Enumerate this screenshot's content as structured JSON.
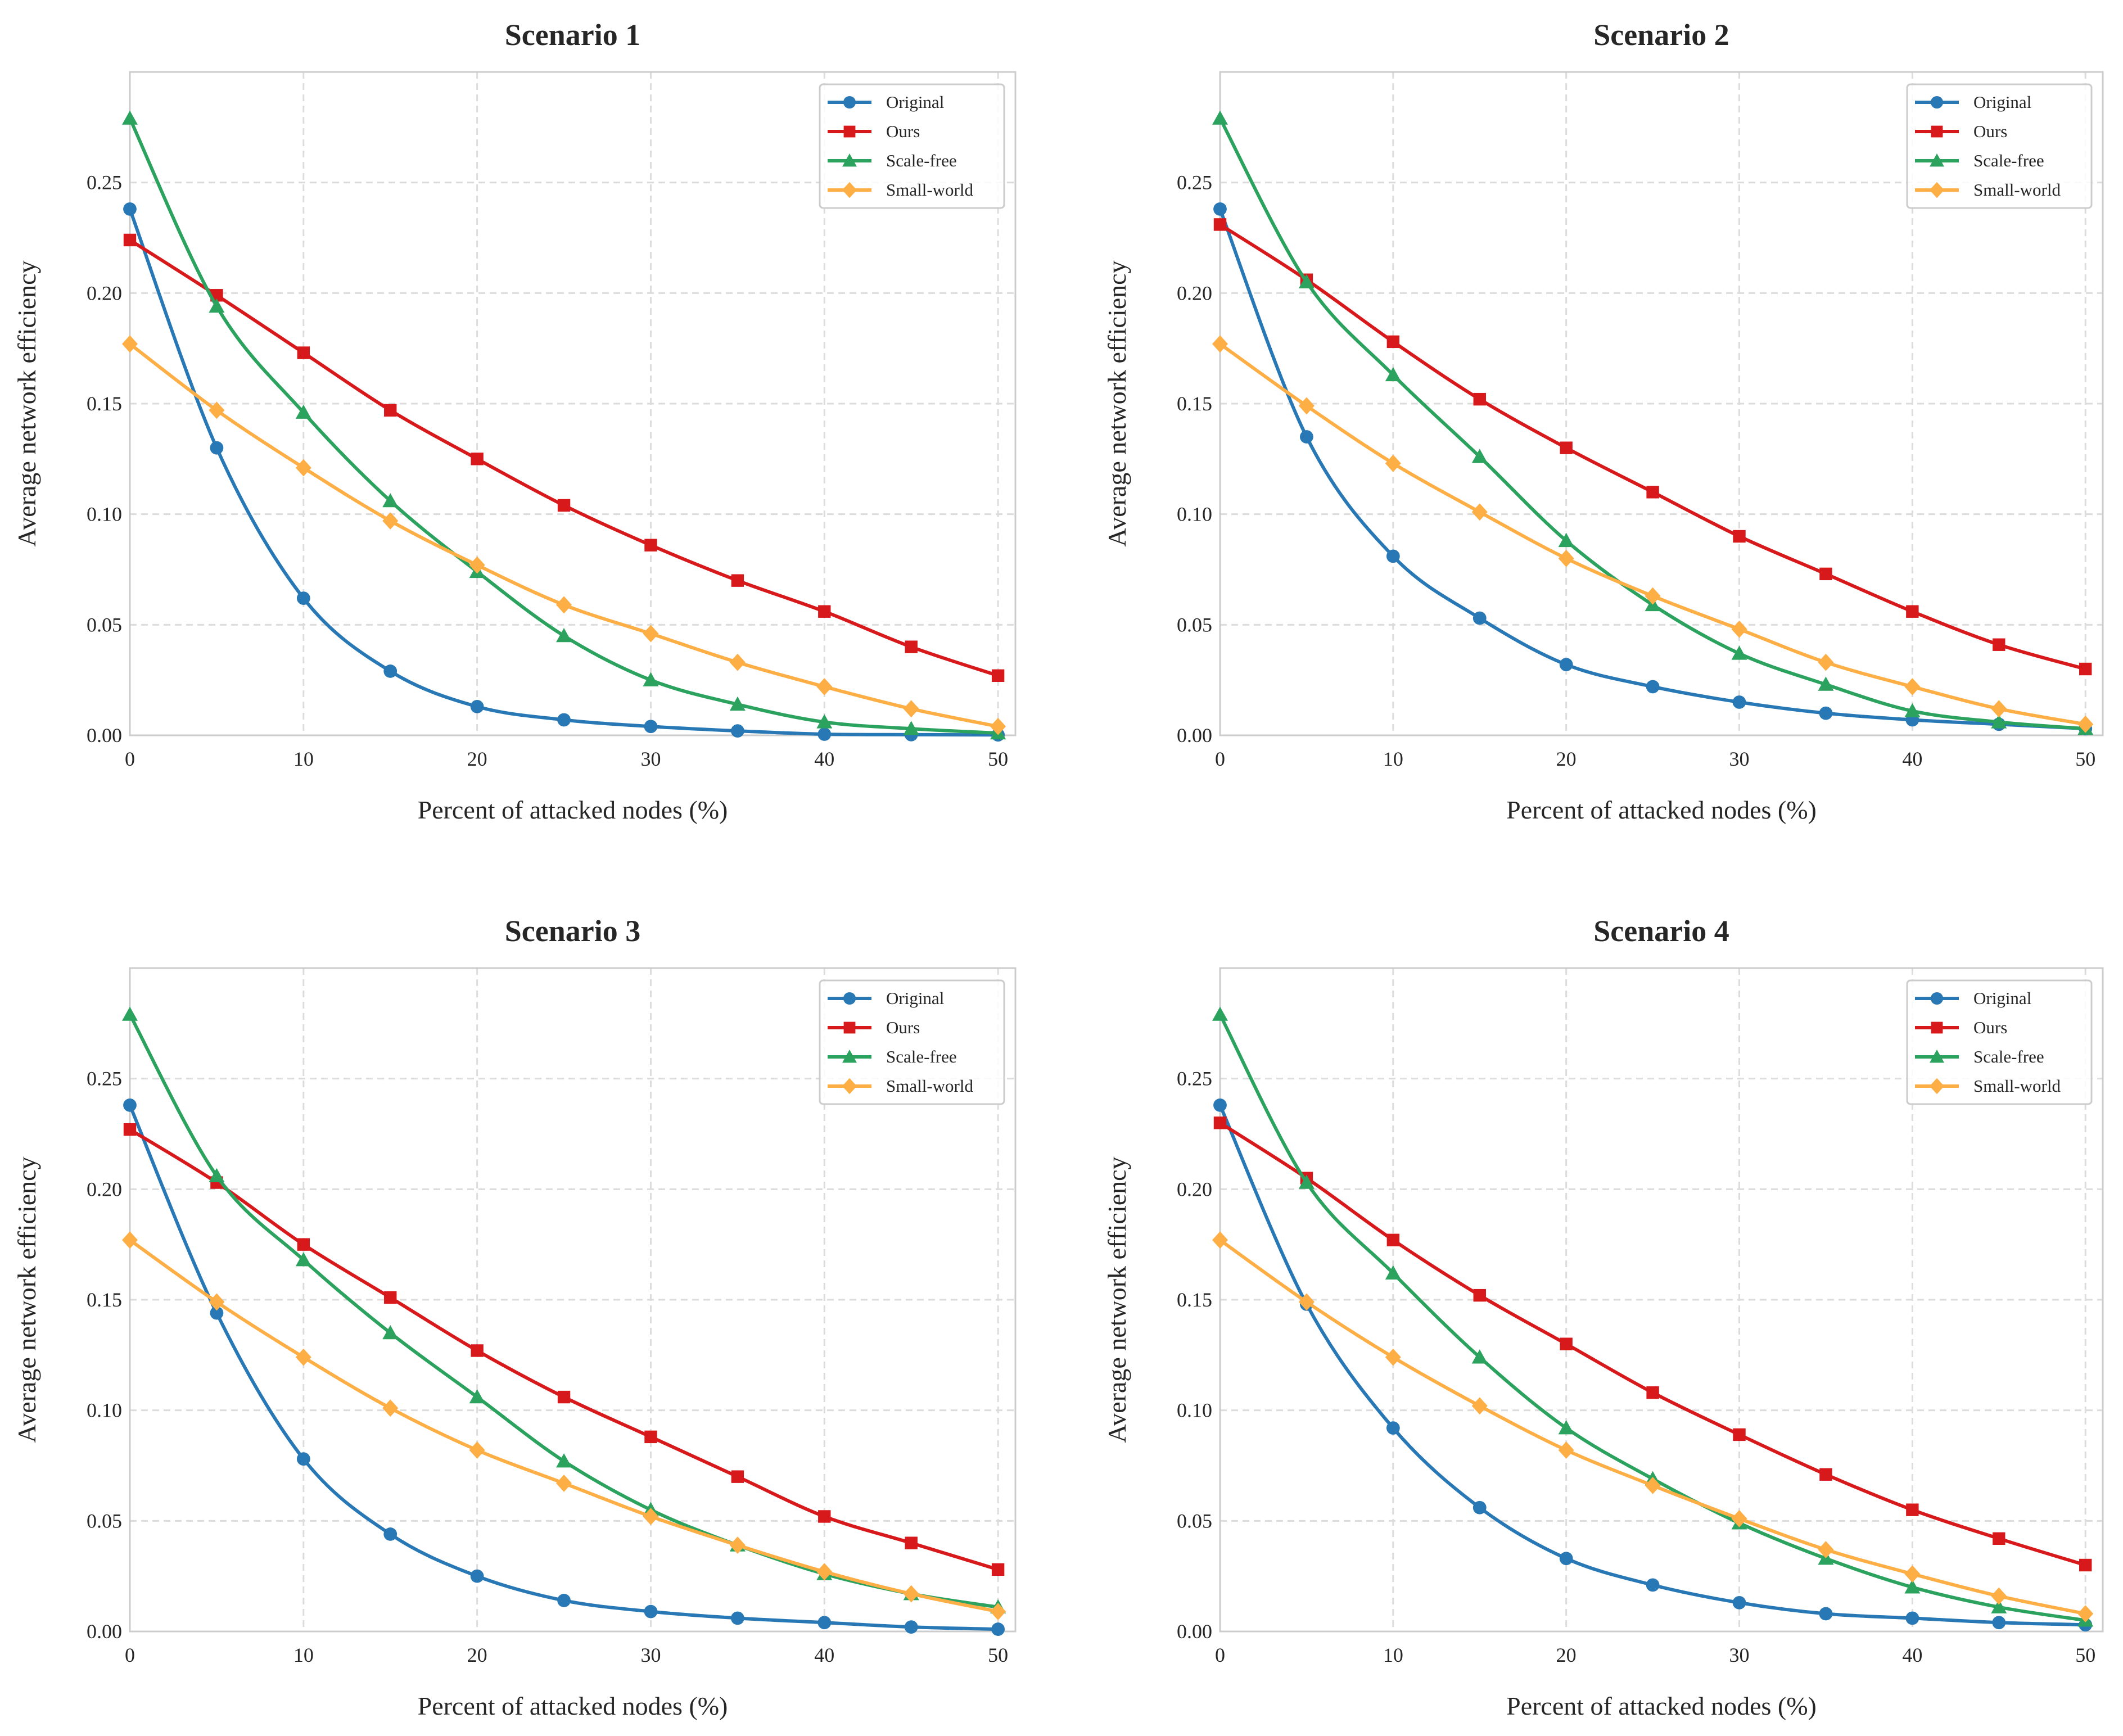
{
  "chart_data": [
    {
      "type": "line",
      "title": "Scenario 1",
      "xlabel": "Percent of attacked nodes (%)",
      "ylabel": "Average network efficiency",
      "xlim": [
        0,
        51
      ],
      "ylim": [
        0,
        0.3
      ],
      "xticks": [
        0,
        10,
        20,
        30,
        40,
        50
      ],
      "yticks": [
        0.0,
        0.05,
        0.1,
        0.15,
        0.2,
        0.25
      ],
      "grid": true,
      "legend": "top-right",
      "x": [
        0,
        5,
        10,
        15,
        20,
        25,
        30,
        35,
        40,
        45,
        50
      ],
      "series": [
        {
          "name": "Original",
          "values": [
            0.238,
            0.13,
            0.062,
            0.029,
            0.013,
            0.007,
            0.004,
            0.002,
            0.0005,
            0.0003,
            0.0002
          ]
        },
        {
          "name": "Ours",
          "values": [
            0.224,
            0.199,
            0.173,
            0.147,
            0.125,
            0.104,
            0.086,
            0.07,
            0.056,
            0.04,
            0.027
          ]
        },
        {
          "name": "Scale-free",
          "values": [
            0.279,
            0.194,
            0.146,
            0.106,
            0.074,
            0.045,
            0.025,
            0.014,
            0.006,
            0.003,
            0.001
          ]
        },
        {
          "name": "Small-world",
          "values": [
            0.177,
            0.147,
            0.121,
            0.097,
            0.077,
            0.059,
            0.046,
            0.033,
            0.022,
            0.012,
            0.004
          ]
        }
      ]
    },
    {
      "type": "line",
      "title": "Scenario 2",
      "xlabel": "Percent of attacked nodes (%)",
      "ylabel": "Average network efficiency",
      "xlim": [
        0,
        51
      ],
      "ylim": [
        0,
        0.3
      ],
      "xticks": [
        0,
        10,
        20,
        30,
        40,
        50
      ],
      "yticks": [
        0.0,
        0.05,
        0.1,
        0.15,
        0.2,
        0.25
      ],
      "grid": true,
      "legend": "top-right",
      "x": [
        0,
        5,
        10,
        15,
        20,
        25,
        30,
        35,
        40,
        45,
        50
      ],
      "series": [
        {
          "name": "Original",
          "values": [
            0.238,
            0.135,
            0.081,
            0.053,
            0.032,
            0.022,
            0.015,
            0.01,
            0.007,
            0.005,
            0.003
          ]
        },
        {
          "name": "Ours",
          "values": [
            0.231,
            0.206,
            0.178,
            0.152,
            0.13,
            0.11,
            0.09,
            0.073,
            0.056,
            0.041,
            0.03
          ]
        },
        {
          "name": "Scale-free",
          "values": [
            0.279,
            0.205,
            0.163,
            0.126,
            0.088,
            0.059,
            0.037,
            0.023,
            0.011,
            0.006,
            0.003
          ]
        },
        {
          "name": "Small-world",
          "values": [
            0.177,
            0.149,
            0.123,
            0.101,
            0.08,
            0.063,
            0.048,
            0.033,
            0.022,
            0.012,
            0.005
          ]
        }
      ]
    },
    {
      "type": "line",
      "title": "Scenario 3",
      "xlabel": "Percent of attacked nodes (%)",
      "ylabel": "Average network efficiency",
      "xlim": [
        0,
        51
      ],
      "ylim": [
        0,
        0.3
      ],
      "xticks": [
        0,
        10,
        20,
        30,
        40,
        50
      ],
      "yticks": [
        0.0,
        0.05,
        0.1,
        0.15,
        0.2,
        0.25
      ],
      "grid": true,
      "legend": "top-right",
      "x": [
        0,
        5,
        10,
        15,
        20,
        25,
        30,
        35,
        40,
        45,
        50
      ],
      "series": [
        {
          "name": "Original",
          "values": [
            0.238,
            0.144,
            0.078,
            0.044,
            0.025,
            0.014,
            0.009,
            0.006,
            0.004,
            0.002,
            0.001
          ]
        },
        {
          "name": "Ours",
          "values": [
            0.227,
            0.203,
            0.175,
            0.151,
            0.127,
            0.106,
            0.088,
            0.07,
            0.052,
            0.04,
            0.028
          ]
        },
        {
          "name": "Scale-free",
          "values": [
            0.279,
            0.206,
            0.168,
            0.135,
            0.106,
            0.077,
            0.055,
            0.039,
            0.026,
            0.017,
            0.011
          ]
        },
        {
          "name": "Small-world",
          "values": [
            0.177,
            0.149,
            0.124,
            0.101,
            0.082,
            0.067,
            0.052,
            0.039,
            0.027,
            0.017,
            0.009
          ]
        }
      ]
    },
    {
      "type": "line",
      "title": "Scenario 4",
      "xlabel": "Percent of attacked nodes (%)",
      "ylabel": "Average network efficiency",
      "xlim": [
        0,
        51
      ],
      "ylim": [
        0,
        0.3
      ],
      "xticks": [
        0,
        10,
        20,
        30,
        40,
        50
      ],
      "yticks": [
        0.0,
        0.05,
        0.1,
        0.15,
        0.2,
        0.25
      ],
      "grid": true,
      "legend": "top-right",
      "x": [
        0,
        5,
        10,
        15,
        20,
        25,
        30,
        35,
        40,
        45,
        50
      ],
      "series": [
        {
          "name": "Original",
          "values": [
            0.238,
            0.148,
            0.092,
            0.056,
            0.033,
            0.021,
            0.013,
            0.008,
            0.006,
            0.004,
            0.003
          ]
        },
        {
          "name": "Ours",
          "values": [
            0.23,
            0.205,
            0.177,
            0.152,
            0.13,
            0.108,
            0.089,
            0.071,
            0.055,
            0.042,
            0.03
          ]
        },
        {
          "name": "Scale-free",
          "values": [
            0.279,
            0.203,
            0.162,
            0.124,
            0.092,
            0.069,
            0.049,
            0.033,
            0.02,
            0.011,
            0.005
          ]
        },
        {
          "name": "Small-world",
          "values": [
            0.177,
            0.149,
            0.124,
            0.102,
            0.082,
            0.066,
            0.051,
            0.037,
            0.026,
            0.016,
            0.008
          ]
        }
      ]
    }
  ],
  "series_style": [
    {
      "color": "#2878b5",
      "marker": "circle"
    },
    {
      "color": "#d7191c",
      "marker": "square"
    },
    {
      "color": "#2ca25f",
      "marker": "triangle"
    },
    {
      "color": "#fdae45",
      "marker": "diamond"
    }
  ]
}
